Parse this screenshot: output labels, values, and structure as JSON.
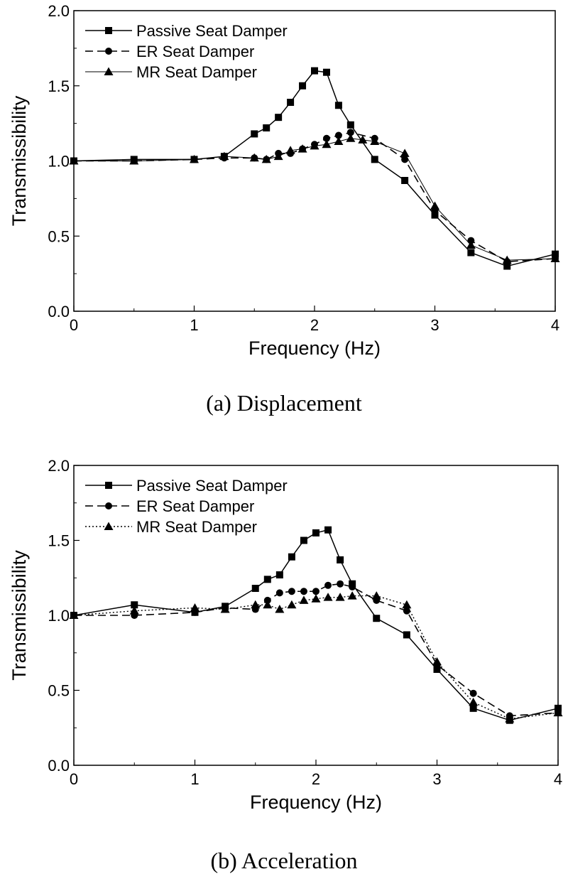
{
  "chart_data": [
    {
      "type": "line",
      "caption": "(a)  Displacement",
      "xlabel": "Frequency (Hz)",
      "ylabel": "Transmissibility",
      "xlim": [
        0,
        4
      ],
      "ylim": [
        0,
        2.0
      ],
      "xticks": [
        0,
        1,
        2,
        3,
        4
      ],
      "yticks": [
        0.0,
        0.5,
        1.0,
        1.5,
        2.0
      ],
      "xtick_labels": [
        "0",
        "1",
        "2",
        "3",
        "4"
      ],
      "ytick_labels": [
        "0.0",
        "0.5",
        "1.0",
        "1.5",
        "2.0"
      ],
      "legend_position": "top-left",
      "series": [
        {
          "name": "Passive Seat Damper",
          "marker": "square",
          "dash": "solid",
          "x": [
            0,
            0.5,
            1.0,
            1.25,
            1.5,
            1.6,
            1.7,
            1.8,
            1.9,
            2.0,
            2.1,
            2.2,
            2.3,
            2.5,
            2.75,
            3.0,
            3.3,
            3.6,
            4.0
          ],
          "y": [
            1.0,
            1.01,
            1.01,
            1.03,
            1.18,
            1.22,
            1.29,
            1.39,
            1.5,
            1.6,
            1.59,
            1.37,
            1.24,
            1.01,
            0.87,
            0.64,
            0.39,
            0.3,
            0.38
          ]
        },
        {
          "name": "ER Seat Damper",
          "marker": "circle",
          "dash": "dashed",
          "x": [
            0,
            0.5,
            1.0,
            1.25,
            1.5,
            1.6,
            1.7,
            1.8,
            1.9,
            2.0,
            2.1,
            2.2,
            2.3,
            2.5,
            2.75,
            3.0,
            3.3,
            3.6,
            4.0
          ],
          "y": [
            1.0,
            1.0,
            1.01,
            1.02,
            1.02,
            1.01,
            1.05,
            1.05,
            1.08,
            1.11,
            1.15,
            1.17,
            1.19,
            1.15,
            1.01,
            0.67,
            0.47,
            0.33,
            0.35
          ]
        },
        {
          "name": "MR Seat Damper",
          "marker": "triangle",
          "dash": "solid-thin",
          "x": [
            0,
            0.5,
            1.0,
            1.25,
            1.5,
            1.6,
            1.7,
            1.8,
            1.9,
            2.0,
            2.1,
            2.2,
            2.3,
            2.4,
            2.5,
            2.75,
            3.0,
            3.3,
            3.6,
            4.0
          ],
          "y": [
            1.0,
            1.0,
            1.01,
            1.03,
            1.02,
            1.01,
            1.03,
            1.07,
            1.08,
            1.1,
            1.11,
            1.13,
            1.15,
            1.14,
            1.13,
            1.05,
            0.7,
            0.44,
            0.34,
            0.35
          ]
        }
      ]
    },
    {
      "type": "line",
      "caption": "(b)  Acceleration",
      "xlabel": "Frequency (Hz)",
      "ylabel": "Transmissibility",
      "xlim": [
        0,
        4
      ],
      "ylim": [
        0,
        2.0
      ],
      "xticks": [
        0,
        1,
        2,
        3,
        4
      ],
      "yticks": [
        0.0,
        0.5,
        1.0,
        1.5,
        2.0
      ],
      "xtick_labels": [
        "0",
        "1",
        "2",
        "3",
        "4"
      ],
      "ytick_labels": [
        "0.0",
        "0.5",
        "1.0",
        "1.5",
        "2.0"
      ],
      "legend_position": "top-left",
      "series": [
        {
          "name": "Passive Seat Damper",
          "marker": "square",
          "dash": "solid",
          "x": [
            0,
            0.5,
            1.0,
            1.25,
            1.5,
            1.6,
            1.7,
            1.8,
            1.9,
            2.0,
            2.1,
            2.2,
            2.3,
            2.5,
            2.75,
            3.0,
            3.3,
            3.6,
            4.0
          ],
          "y": [
            1.0,
            1.07,
            1.02,
            1.06,
            1.18,
            1.24,
            1.27,
            1.39,
            1.5,
            1.55,
            1.57,
            1.37,
            1.21,
            0.98,
            0.87,
            0.64,
            0.38,
            0.3,
            0.38
          ]
        },
        {
          "name": "ER Seat Damper",
          "marker": "circle",
          "dash": "dashed",
          "x": [
            0,
            0.5,
            1.0,
            1.25,
            1.5,
            1.6,
            1.7,
            1.8,
            1.9,
            2.0,
            2.1,
            2.2,
            2.3,
            2.5,
            2.75,
            3.0,
            3.3,
            3.6,
            4.0
          ],
          "y": [
            1.0,
            1.0,
            1.02,
            1.05,
            1.04,
            1.1,
            1.15,
            1.16,
            1.16,
            1.16,
            1.2,
            1.21,
            1.19,
            1.1,
            1.03,
            0.67,
            0.48,
            0.33,
            0.35
          ]
        },
        {
          "name": "MR Seat Damper",
          "marker": "triangle",
          "dash": "dotted",
          "x": [
            0,
            0.5,
            1.0,
            1.25,
            1.5,
            1.6,
            1.7,
            1.8,
            1.9,
            2.0,
            2.1,
            2.2,
            2.3,
            2.5,
            2.75,
            3.0,
            3.3,
            3.6,
            4.0
          ],
          "y": [
            1.0,
            1.03,
            1.05,
            1.04,
            1.07,
            1.07,
            1.04,
            1.07,
            1.1,
            1.11,
            1.12,
            1.12,
            1.13,
            1.13,
            1.07,
            0.69,
            0.42,
            0.31,
            0.35
          ]
        }
      ]
    }
  ]
}
